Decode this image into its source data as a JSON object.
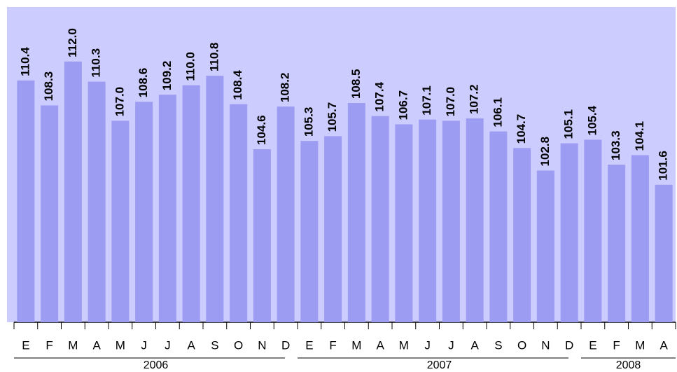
{
  "chart_data": {
    "type": "bar",
    "categories": [
      "E",
      "F",
      "M",
      "A",
      "M",
      "J",
      "J",
      "A",
      "S",
      "O",
      "N",
      "D",
      "E",
      "F",
      "M",
      "A",
      "M",
      "J",
      "J",
      "A",
      "S",
      "O",
      "N",
      "D",
      "E",
      "F",
      "M",
      "A"
    ],
    "values": [
      110.4,
      108.3,
      112.0,
      110.3,
      107.0,
      108.6,
      109.2,
      110.0,
      110.8,
      108.4,
      104.6,
      108.2,
      105.3,
      105.7,
      108.5,
      107.4,
      106.7,
      107.1,
      107.0,
      107.2,
      106.1,
      104.7,
      102.8,
      105.1,
      105.4,
      103.3,
      104.1,
      101.6
    ],
    "value_labels": [
      "110.4",
      "108.3",
      "112.0",
      "110.3",
      "107.0",
      "108.6",
      "109.2",
      "110.0",
      "110.8",
      "108.4",
      "104.6",
      "108.2",
      "105.3",
      "105.7",
      "108.5",
      "107.4",
      "106.7",
      "107.1",
      "107.0",
      "107.2",
      "106.1",
      "104.7",
      "102.8",
      "105.1",
      "105.4",
      "103.3",
      "104.1",
      "101.6"
    ],
    "groups": [
      {
        "label": "2006",
        "size": 12
      },
      {
        "label": "2007",
        "size": 12
      },
      {
        "label": "2008",
        "size": 4
      }
    ],
    "color": "#9c9cf2",
    "background": "#ccccff",
    "ylim": [
      90,
      116.6
    ]
  }
}
